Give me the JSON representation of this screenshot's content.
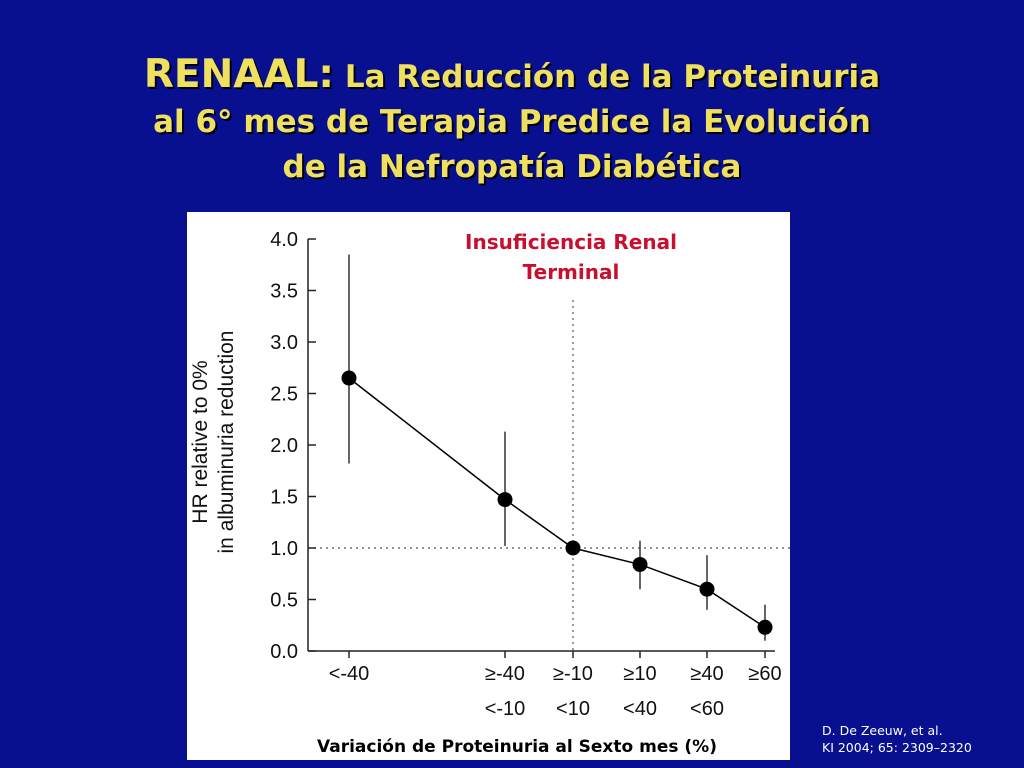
{
  "slide": {
    "title_main": "RENAAL:",
    "title_rest_1": "La Reducción de la Proteinuria",
    "title_line_2": "al 6° mes de Terapia Predice la Evolución",
    "title_line_3": "de la Nefropatía Diabética",
    "citation_line_1": "D. De Zeeuw, et al.",
    "citation_line_2": "KI 2004;  65: 2309–2320"
  },
  "chart_data": {
    "type": "scatter",
    "ylabel_line_1": "HR relative to 0%",
    "ylabel_line_2": "in albuminuria reduction",
    "xlabel": "Variación de Proteinuria al Sexto mes (%)",
    "annotation_line_1": "Insuficiencia Renal",
    "annotation_line_2": "Terminal",
    "ylim": [
      0,
      4.0
    ],
    "yticks": [
      "0.0",
      "0.5",
      "1.0",
      "1.5",
      "2.0",
      "2.5",
      "3.0",
      "3.5",
      "4.0"
    ],
    "categories": [
      {
        "line1": "<-40",
        "line2": ""
      },
      {
        "line1": "≥-40",
        "line2": "<-10"
      },
      {
        "line1": "≥-10",
        "line2": "<10"
      },
      {
        "line1": "≥10",
        "line2": "<40"
      },
      {
        "line1": "≥40",
        "line2": "<60"
      },
      {
        "line1": "≥60",
        "line2": ""
      }
    ],
    "series": [
      {
        "values": [
          2.65,
          1.47,
          1.0,
          0.84,
          0.6,
          0.23
        ],
        "ci_low": [
          1.82,
          1.02,
          1.0,
          0.6,
          0.4,
          0.1
        ],
        "ci_high": [
          3.85,
          2.13,
          1.0,
          1.07,
          0.93,
          0.45
        ]
      }
    ],
    "reference_y": 1.0,
    "reference_x_category": "≥-10",
    "marker_color": "#000000",
    "line_color": "#000000"
  }
}
